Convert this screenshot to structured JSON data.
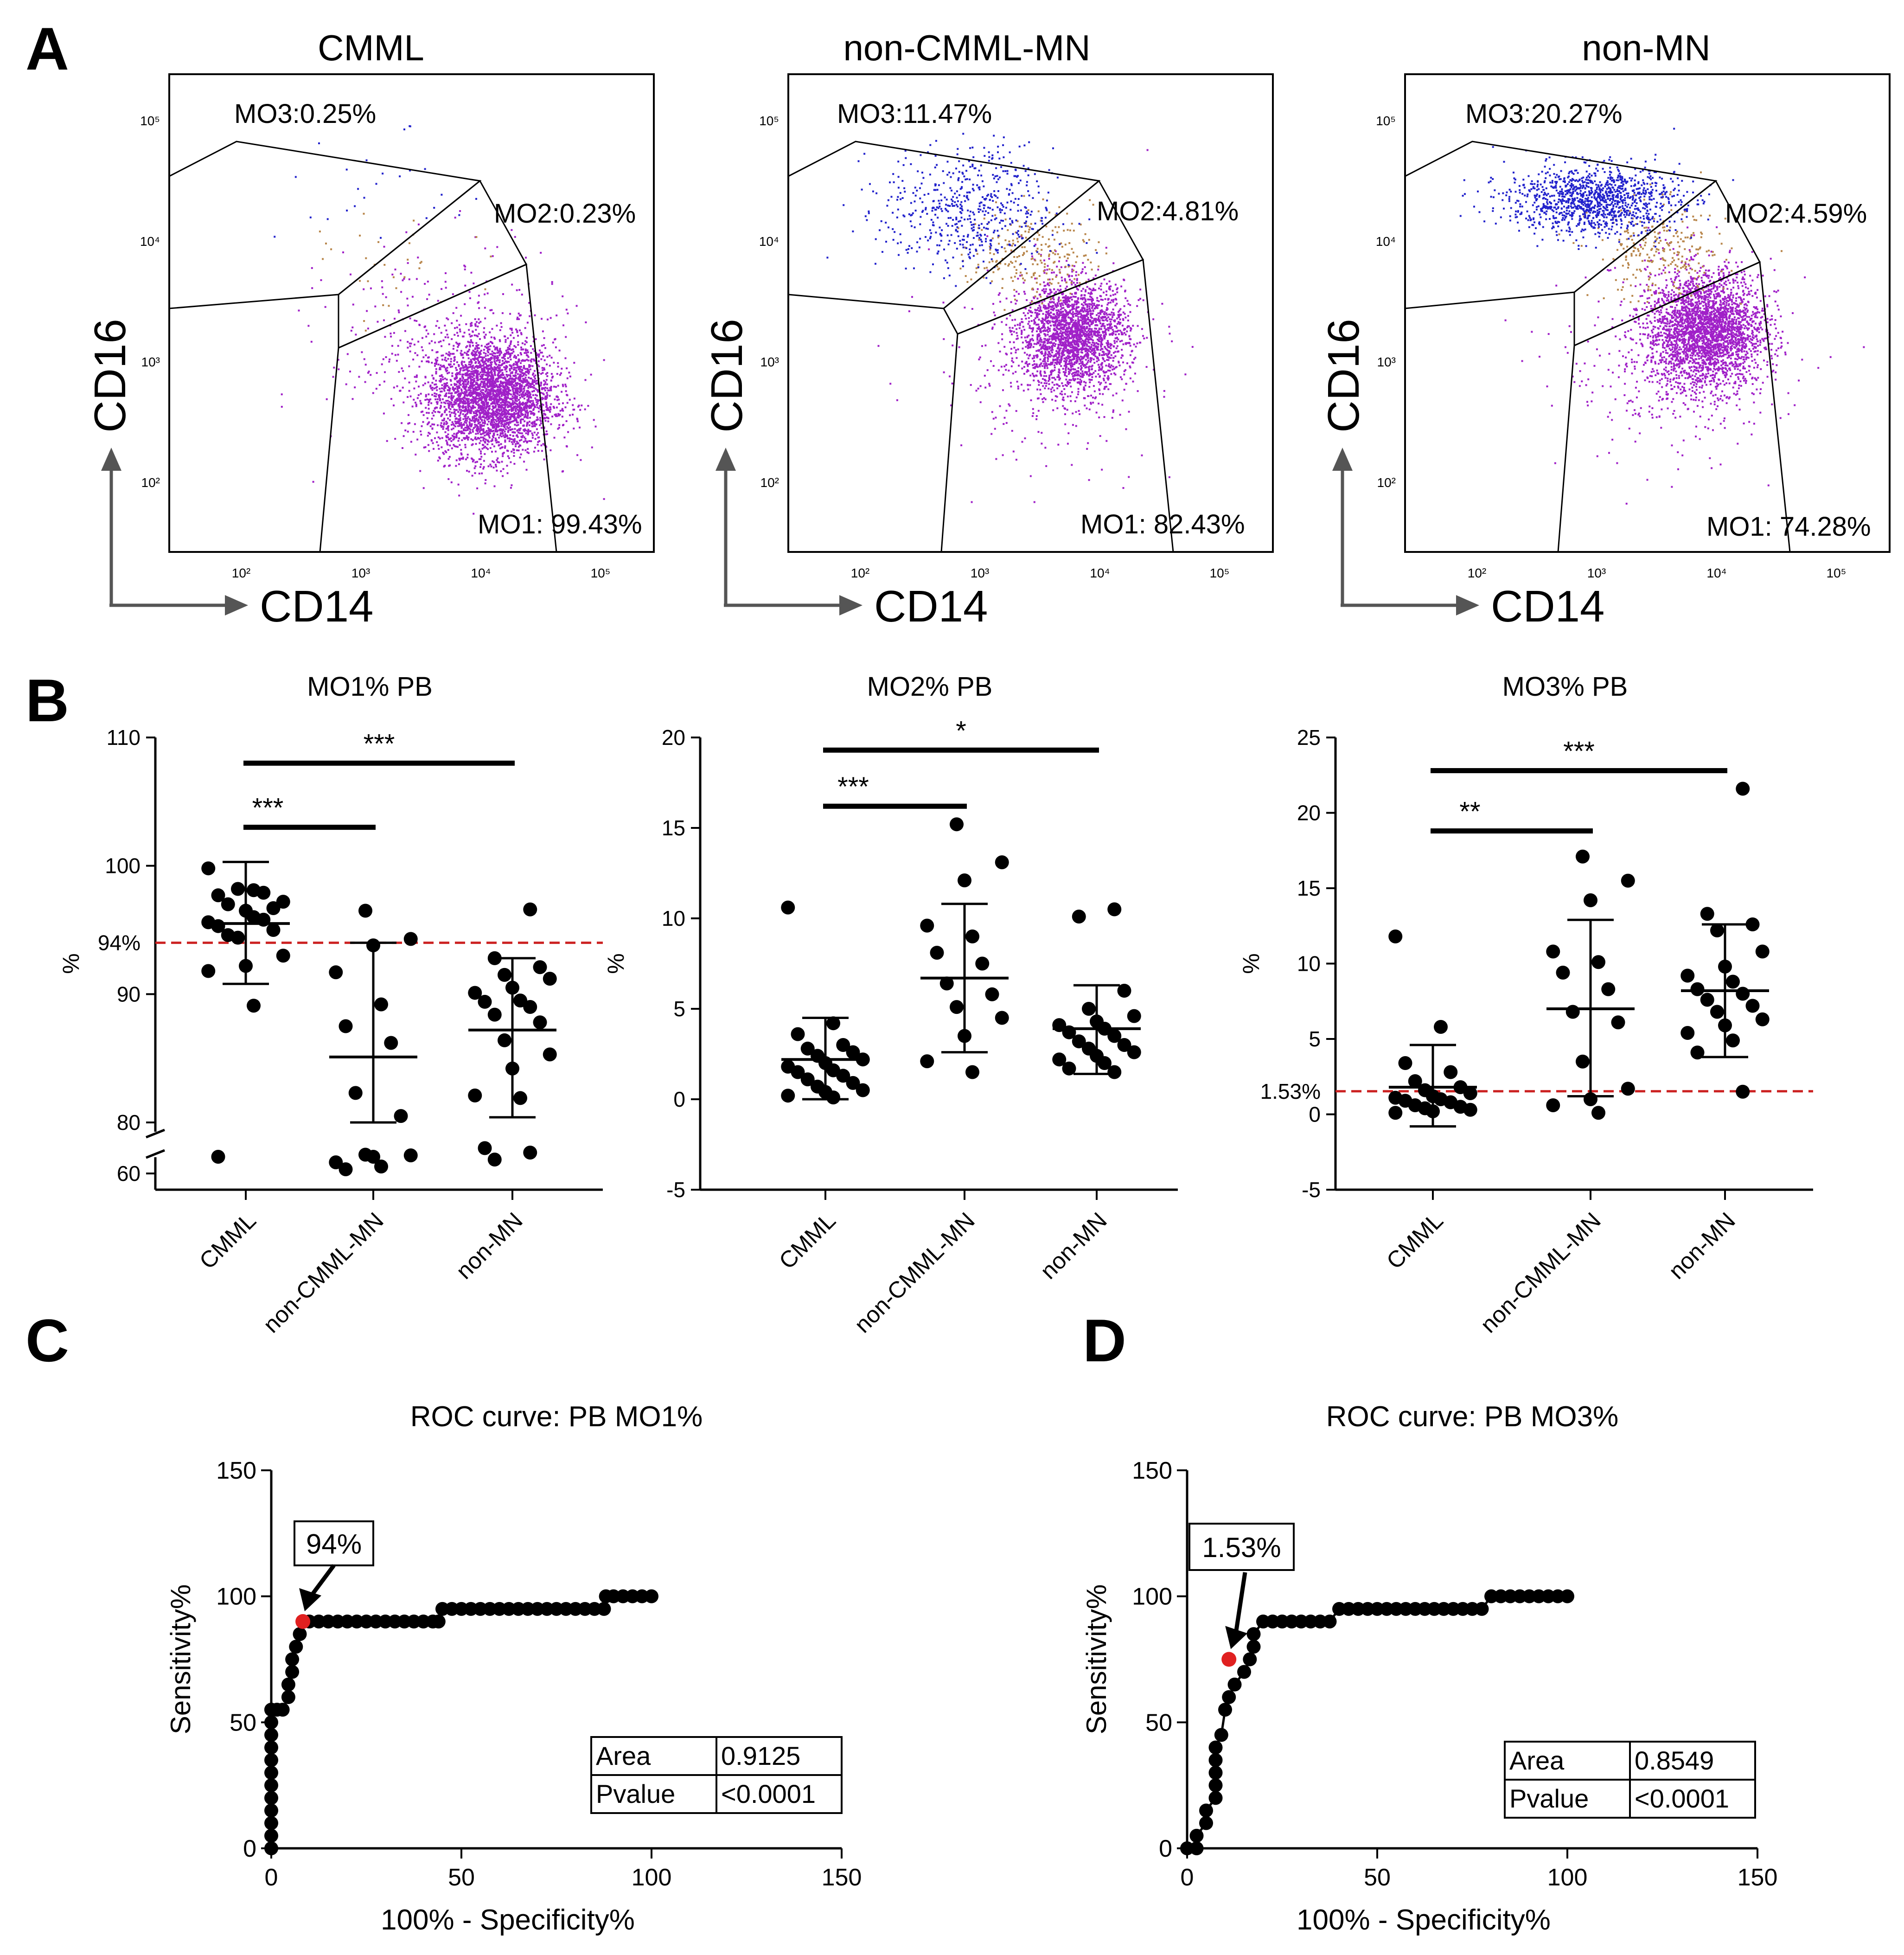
{
  "panel_letters": {
    "a": "A",
    "b": "B",
    "c": "C",
    "d": "D"
  },
  "chart_data": [
    {
      "type": "scatter",
      "subtype": "flow-cytometry",
      "title": "CMML",
      "xlabel": "CD14",
      "ylabel": "CD16",
      "x_ticks": [
        "10²",
        "10³",
        "10⁴",
        "10⁵"
      ],
      "y_ticks": [
        "10²",
        "10³",
        "10⁴",
        "10⁵"
      ],
      "x_scale": "log",
      "y_scale": "log",
      "xlim": [
        20,
        200000
      ],
      "ylim": [
        10,
        200000
      ],
      "gates": [
        {
          "name": "MO3",
          "label": "MO3:0.25%",
          "percent": 0.25,
          "color": "#2222cc"
        },
        {
          "name": "MO2",
          "label": "MO2:0.23%",
          "percent": 0.23,
          "color": "#b8864b"
        },
        {
          "name": "MO1",
          "label": "MO1: 99.43%",
          "percent": 99.43,
          "color": "#a020c8"
        }
      ],
      "clusters": [
        {
          "gate": "MO1",
          "center_x": 9000,
          "center_y": 250,
          "spread_log_x": 0.26,
          "spread_log_y": 0.26,
          "events": 3200
        },
        {
          "gate": "MO1",
          "center_x": 4000,
          "center_y": 700,
          "spread_log_x": 0.5,
          "spread_log_y": 0.45,
          "events": 350
        },
        {
          "gate": "MO2",
          "center_x": 1500,
          "center_y": 3500,
          "spread_log_x": 0.3,
          "spread_log_y": 0.25,
          "events": 30
        },
        {
          "gate": "MO3",
          "center_x": 1000,
          "center_y": 15000,
          "spread_log_x": 0.4,
          "spread_log_y": 0.3,
          "events": 25
        }
      ]
    },
    {
      "type": "scatter",
      "subtype": "flow-cytometry",
      "title": "non-CMML-MN",
      "xlabel": "CD14",
      "ylabel": "CD16",
      "x_ticks": [
        "10²",
        "10³",
        "10⁴",
        "10⁵"
      ],
      "y_ticks": [
        "10²",
        "10³",
        "10⁴",
        "10⁵"
      ],
      "x_scale": "log",
      "y_scale": "log",
      "xlim": [
        20,
        200000
      ],
      "ylim": [
        10,
        200000
      ],
      "gates": [
        {
          "name": "MO3",
          "label": "MO3:11.47%",
          "percent": 11.47,
          "color": "#2222cc"
        },
        {
          "name": "MO2",
          "label": "MO2:4.81%",
          "percent": 4.81,
          "color": "#b8864b"
        },
        {
          "name": "MO1",
          "label": "MO1: 82.43%",
          "percent": 82.43,
          "color": "#a020c8"
        }
      ],
      "clusters": [
        {
          "gate": "MO1",
          "center_x": 4500,
          "center_y": 900,
          "spread_log_x": 0.22,
          "spread_log_y": 0.24,
          "events": 2200
        },
        {
          "gate": "MO1",
          "center_x": 2500,
          "center_y": 500,
          "spread_log_x": 0.45,
          "spread_log_y": 0.45,
          "events": 300
        },
        {
          "gate": "MO2",
          "center_x": 2000,
          "center_y": 5000,
          "spread_log_x": 0.25,
          "spread_log_y": 0.2,
          "events": 230
        },
        {
          "gate": "MO3",
          "center_x": 600,
          "center_y": 12000,
          "spread_log_x": 0.35,
          "spread_log_y": 0.28,
          "events": 550
        }
      ]
    },
    {
      "type": "scatter",
      "subtype": "flow-cytometry",
      "title": "non-MN",
      "xlabel": "CD14",
      "ylabel": "CD16",
      "x_ticks": [
        "10²",
        "10³",
        "10⁴",
        "10⁵"
      ],
      "y_ticks": [
        "10²",
        "10³",
        "10⁴",
        "10⁵"
      ],
      "x_scale": "log",
      "y_scale": "log",
      "xlim": [
        20,
        200000
      ],
      "ylim": [
        10,
        200000
      ],
      "gates": [
        {
          "name": "MO3",
          "label": "MO3:20.27%",
          "percent": 20.27,
          "color": "#2222cc"
        },
        {
          "name": "MO2",
          "label": "MO2:4.59%",
          "percent": 4.59,
          "color": "#b8864b"
        },
        {
          "name": "MO1",
          "label": "MO1: 74.28%",
          "percent": 74.28,
          "color": "#a020c8"
        }
      ],
      "clusters": [
        {
          "gate": "MO1",
          "center_x": 6000,
          "center_y": 1000,
          "spread_log_x": 0.24,
          "spread_log_y": 0.26,
          "events": 2800
        },
        {
          "gate": "MO1",
          "center_x": 3000,
          "center_y": 500,
          "spread_log_x": 0.45,
          "spread_log_y": 0.45,
          "events": 300
        },
        {
          "gate": "MO2",
          "center_x": 2500,
          "center_y": 5000,
          "spread_log_x": 0.28,
          "spread_log_y": 0.22,
          "events": 260
        },
        {
          "gate": "MO3",
          "center_x": 700,
          "center_y": 15000,
          "spread_log_x": 0.35,
          "spread_log_y": 0.15,
          "events": 1200
        }
      ]
    },
    {
      "type": "scatter",
      "subtype": "dot-plot",
      "title": "MO1% PB",
      "ylabel": "%",
      "categories": [
        "CMML",
        "non-CMML-MN",
        "non-MN"
      ],
      "ylim": [
        58,
        110
      ],
      "y_ticks": [
        60,
        80,
        90,
        100,
        110
      ],
      "axis_break": {
        "from": 60,
        "to": 80
      },
      "threshold": {
        "value": 94,
        "label": "94%",
        "color": "#cc2222"
      },
      "significance": [
        {
          "from": 0,
          "to": 1,
          "label": "***",
          "level": 103
        },
        {
          "from": 0,
          "to": 2,
          "label": "***",
          "level": 108
        }
      ],
      "series": [
        {
          "name": "CMML",
          "mean": 95.5,
          "sd_low": 90.8,
          "sd_high": 100.3,
          "points": [
            99.8,
            98.1,
            97.7,
            97.9,
            97.0,
            96.7,
            98.2,
            97.2,
            96.5,
            95.6,
            96.0,
            95.3,
            95.8,
            94.6,
            95.0,
            94.4,
            93.0,
            92.2,
            91.8,
            89.1,
            72.0
          ]
        },
        {
          "name": "non-CMML-MN",
          "mean": 85.1,
          "sd_low": 80.0,
          "sd_high": 94.0,
          "points": [
            96.5,
            94.3,
            93.8,
            91.7,
            89.2,
            87.5,
            86.2,
            82.3,
            80.5,
            73.5,
            73.0,
            72.0,
            68.0,
            65.0,
            63.0
          ]
        },
        {
          "name": "non-MN",
          "mean": 87.2,
          "sd_low": 80.4,
          "sd_high": 92.8,
          "points": [
            96.6,
            92.8,
            92.1,
            91.5,
            91.2,
            90.5,
            90.1,
            89.5,
            89.4,
            89.0,
            88.4,
            87.8,
            86.4,
            85.3,
            84.2,
            82.1,
            81.9,
            78.2,
            75.0,
            70.0
          ]
        }
      ]
    },
    {
      "type": "scatter",
      "subtype": "dot-plot",
      "title": "MO2% PB",
      "ylabel": "%",
      "categories": [
        "CMML",
        "non-CMML-MN",
        "non-MN"
      ],
      "ylim": [
        -5,
        20
      ],
      "y_ticks": [
        -5,
        0,
        5,
        10,
        15,
        20
      ],
      "significance": [
        {
          "from": 0,
          "to": 1,
          "label": "***",
          "level": 16.2
        },
        {
          "from": 0,
          "to": 2,
          "label": "*",
          "level": 19.3
        }
      ],
      "series": [
        {
          "name": "CMML",
          "mean": 2.2,
          "sd_low": 0.0,
          "sd_high": 4.5,
          "points": [
            10.6,
            4.2,
            3.6,
            3.0,
            2.8,
            2.6,
            2.4,
            2.2,
            2.0,
            1.8,
            1.6,
            1.5,
            1.3,
            1.1,
            0.9,
            0.7,
            0.5,
            0.4,
            0.2,
            0.1
          ]
        },
        {
          "name": "non-CMML-MN",
          "mean": 6.7,
          "sd_low": 2.6,
          "sd_high": 10.8,
          "points": [
            15.2,
            13.1,
            12.1,
            9.6,
            9.0,
            8.1,
            7.5,
            6.4,
            5.8,
            5.1,
            4.5,
            3.5,
            2.1,
            1.5
          ]
        },
        {
          "name": "non-MN",
          "mean": 3.9,
          "sd_low": 1.4,
          "sd_high": 6.3,
          "points": [
            10.5,
            10.1,
            6.0,
            5.0,
            4.6,
            4.3,
            4.1,
            3.9,
            3.7,
            3.5,
            3.2,
            3.0,
            2.8,
            2.6,
            2.4,
            2.2,
            2.0,
            1.7,
            1.5
          ]
        }
      ]
    },
    {
      "type": "scatter",
      "subtype": "dot-plot",
      "title": "MO3% PB",
      "ylabel": "%",
      "categories": [
        "CMML",
        "non-CMML-MN",
        "non-MN"
      ],
      "ylim": [
        -5,
        25
      ],
      "y_ticks": [
        -5,
        0,
        5,
        10,
        15,
        20,
        25
      ],
      "threshold": {
        "value": 1.53,
        "label": "1.53%",
        "color": "#cc2222"
      },
      "significance": [
        {
          "from": 0,
          "to": 1,
          "label": "**",
          "level": 18.8
        },
        {
          "from": 0,
          "to": 2,
          "label": "***",
          "level": 22.8
        }
      ],
      "series": [
        {
          "name": "CMML",
          "mean": 1.8,
          "sd_low": -0.8,
          "sd_high": 4.6,
          "points": [
            11.8,
            5.8,
            3.4,
            2.8,
            2.2,
            1.8,
            1.6,
            1.4,
            1.2,
            1.1,
            1.0,
            0.9,
            0.8,
            0.6,
            0.5,
            0.4,
            0.3,
            0.2,
            0.1
          ]
        },
        {
          "name": "non-CMML-MN",
          "mean": 7.0,
          "sd_low": 1.2,
          "sd_high": 12.9,
          "points": [
            17.1,
            15.5,
            14.2,
            10.8,
            10.1,
            9.4,
            8.3,
            6.8,
            6.1,
            3.5,
            1.7,
            1.0,
            0.6,
            0.1
          ]
        },
        {
          "name": "non-MN",
          "mean": 8.2,
          "sd_low": 3.8,
          "sd_high": 12.6,
          "points": [
            21.6,
            13.3,
            12.6,
            12.2,
            10.8,
            9.8,
            9.2,
            8.8,
            8.3,
            8.0,
            7.6,
            7.2,
            6.8,
            6.3,
            5.9,
            5.4,
            4.9,
            4.1,
            1.5
          ]
        }
      ]
    },
    {
      "type": "line",
      "subtype": "roc-curve",
      "title": "ROC curve: PB MO1%",
      "xlabel": "100% - Specificity%",
      "ylabel": "Sensitivity%",
      "xlim": [
        0,
        150
      ],
      "ylim": [
        0,
        150
      ],
      "x_ticks": [
        0,
        50,
        100,
        150
      ],
      "y_ticks": [
        0,
        50,
        100,
        150
      ],
      "cutoff": {
        "label": "94%",
        "x": 8.3,
        "y": 90,
        "color": "#e02020"
      },
      "stats": [
        {
          "label": "Area",
          "value": "0.9125"
        },
        {
          "label": "Pvalue",
          "value": "<0.0001"
        }
      ],
      "x": [
        0,
        0,
        0,
        0,
        0,
        0,
        0,
        0,
        0,
        0,
        0,
        0,
        0,
        1.5,
        3,
        4.5,
        4.5,
        5.5,
        5.5,
        6.5,
        7.5,
        8.3,
        10,
        12.5,
        15,
        17.5,
        20,
        22.5,
        25,
        27.5,
        30,
        32.5,
        35,
        37.5,
        40,
        42.5,
        44,
        45,
        47.5,
        50,
        52.5,
        55,
        57.5,
        60,
        62.5,
        65,
        67.5,
        70,
        72.5,
        75,
        77.5,
        80,
        82.5,
        85,
        87.5,
        88,
        90,
        92.5,
        95,
        97.5,
        100
      ],
      "y": [
        0,
        5,
        10,
        15,
        20,
        25,
        30,
        35,
        40,
        45,
        50,
        55,
        55,
        55,
        55,
        60,
        65,
        70,
        75,
        80,
        85,
        90,
        90,
        90,
        90,
        90,
        90,
        90,
        90,
        90,
        90,
        90,
        90,
        90,
        90,
        90,
        90,
        95,
        95,
        95,
        95,
        95,
        95,
        95,
        95,
        95,
        95,
        95,
        95,
        95,
        95,
        95,
        95,
        95,
        95,
        100,
        100,
        100,
        100,
        100,
        100
      ]
    },
    {
      "type": "line",
      "subtype": "roc-curve",
      "title": "ROC curve: PB MO3%",
      "xlabel": "100% - Specificity%",
      "ylabel": "Sensitivity%",
      "xlim": [
        0,
        150
      ],
      "ylim": [
        0,
        150
      ],
      "x_ticks": [
        0,
        50,
        100,
        150
      ],
      "y_ticks": [
        0,
        50,
        100,
        150
      ],
      "cutoff": {
        "label": "1.53%",
        "x": 11,
        "y": 75,
        "color": "#e02020"
      },
      "stats": [
        {
          "label": "Area",
          "value": "0.8549"
        },
        {
          "label": "Pvalue",
          "value": "<0.0001"
        }
      ],
      "x": [
        0,
        2.5,
        2.5,
        5,
        5,
        7.5,
        7.5,
        7.5,
        7.5,
        7.5,
        9,
        10,
        11,
        12.5,
        15,
        16.5,
        17.5,
        17.5,
        20,
        22.5,
        25,
        27.5,
        30,
        32.5,
        35,
        37.5,
        40,
        42.5,
        45,
        47.5,
        50,
        52.5,
        55,
        57.5,
        60,
        62.5,
        65,
        67.5,
        70,
        72.5,
        75,
        77.5,
        80,
        82.5,
        85,
        87.5,
        90,
        92.5,
        95,
        97.5,
        100
      ],
      "y": [
        0,
        0,
        5,
        10,
        15,
        20,
        25,
        30,
        35,
        40,
        45,
        55,
        60,
        65,
        70,
        75,
        80,
        85,
        90,
        90,
        90,
        90,
        90,
        90,
        90,
        90,
        95,
        95,
        95,
        95,
        95,
        95,
        95,
        95,
        95,
        95,
        95,
        95,
        95,
        95,
        95,
        95,
        100,
        100,
        100,
        100,
        100,
        100,
        100,
        100,
        100
      ]
    }
  ]
}
